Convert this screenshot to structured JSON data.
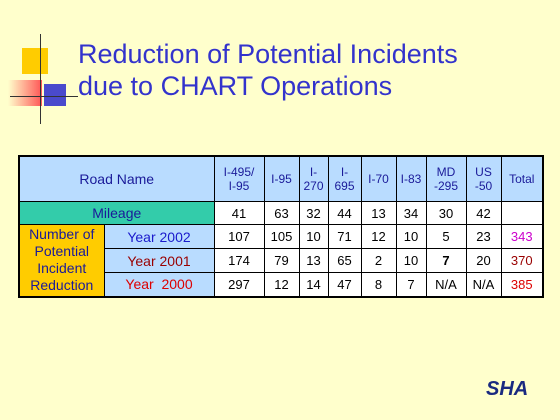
{
  "title_lines": [
    "Reduction of Potential Incidents",
    "due to CHART Operations"
  ],
  "table": {
    "header": [
      [
        "Road Name"
      ],
      [
        "I-495/",
        "I-95"
      ],
      [
        "I-95"
      ],
      [
        "I-",
        "270"
      ],
      [
        "I-",
        "695"
      ],
      [
        "I-70"
      ],
      [
        "I-83"
      ],
      [
        "MD",
        "-295"
      ],
      [
        "US",
        "-50"
      ],
      [
        "Total"
      ]
    ],
    "mileage": {
      "label": "Mileage",
      "values": [
        41,
        63,
        32,
        44,
        13,
        34,
        30,
        42
      ]
    },
    "group_label": [
      "Number of",
      "Potential",
      "Incident",
      "Reduction"
    ],
    "rows": [
      {
        "label": "Year 2002",
        "values": [
          107,
          105,
          10,
          71,
          12,
          10,
          5,
          23,
          343
        ]
      },
      {
        "label": "Year 2001",
        "values": [
          174,
          79,
          13,
          65,
          2,
          10,
          7,
          20,
          370
        ]
      },
      {
        "label": "Year  2000",
        "values": [
          297,
          12,
          14,
          47,
          8,
          7,
          "N/A",
          "N/A",
          385
        ]
      }
    ]
  },
  "logo": "SHA"
}
